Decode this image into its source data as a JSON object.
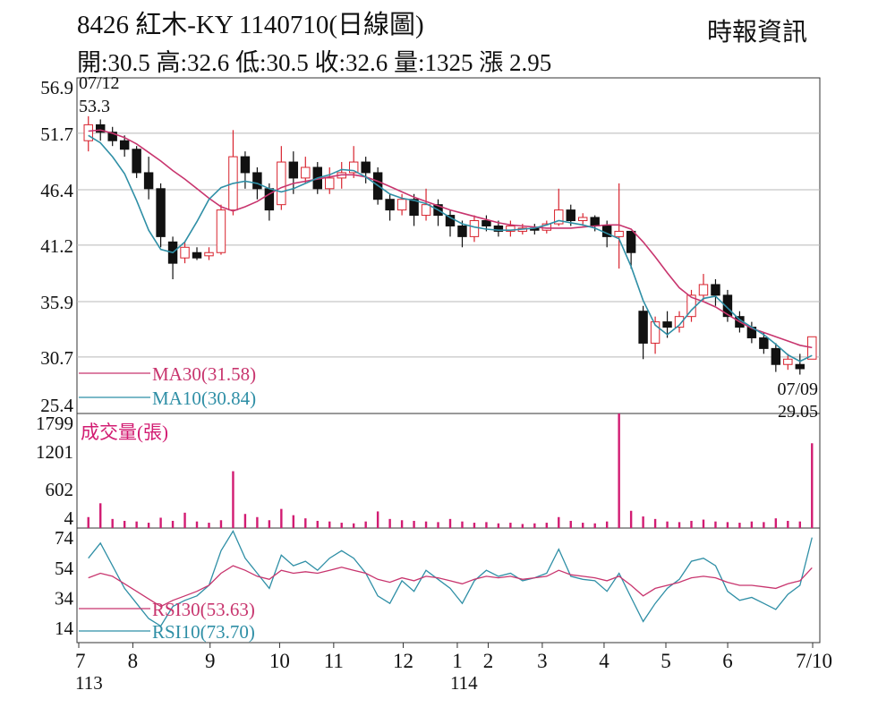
{
  "header": {
    "title": "8426  紅木-KY 1140710(日線圖)",
    "source": "時報資訊",
    "ohlc": "開:30.5 高:32.6 低:30.5 收:32.6 量:1325 漲 2.95"
  },
  "colors": {
    "ma30": "#c8356e",
    "ma10": "#2f8fa6",
    "up": "#d8232e",
    "down": "#111111",
    "volume": "#d21c72",
    "grid": "#b8b8b8"
  },
  "chart_data": [
    {
      "type": "candlestick",
      "ylim": [
        25.4,
        56.9
      ],
      "yticks": [
        "56.9",
        "51.7",
        "46.4",
        "41.2",
        "35.9",
        "30.7",
        "25.4"
      ],
      "x_ticks": [
        {
          "label": "7",
          "sub": "113"
        },
        {
          "label": "8"
        },
        {
          "label": "9"
        },
        {
          "label": "10"
        },
        {
          "label": "11"
        },
        {
          "label": "12"
        },
        {
          "label": "1",
          "sub": "114"
        },
        {
          "label": "2"
        },
        {
          "label": "3"
        },
        {
          "label": "4"
        },
        {
          "label": "5"
        },
        {
          "label": "6"
        },
        {
          "label": "7/10"
        }
      ],
      "high_annotation": {
        "date": "07/12",
        "value": "53.3"
      },
      "low_annotation": {
        "date": "07/09",
        "value": "29.05"
      },
      "series": [
        {
          "name": "MA30",
          "legend": "MA30(31.58)",
          "values": [
            51.9,
            52.0,
            51.7,
            51.3,
            50.7,
            49.9,
            49.1,
            48.2,
            47.4,
            46.5,
            45.6,
            44.8,
            44.4,
            44.8,
            45.3,
            46.0,
            46.6,
            47.0,
            47.2,
            47.4,
            47.6,
            47.8,
            47.8,
            47.6,
            47.2,
            46.7,
            46.2,
            45.7,
            45.3,
            44.9,
            44.5,
            44.2,
            43.9,
            43.6,
            43.3,
            43.1,
            43.0,
            42.9,
            42.8,
            42.8,
            42.8,
            42.9,
            43.0,
            43.1,
            43.1,
            42.7,
            41.5,
            40.1,
            38.6,
            37.2,
            36.3,
            35.9,
            35.4,
            34.7,
            34.0,
            33.4,
            33.0,
            32.6,
            32.2,
            31.8,
            31.58
          ]
        },
        {
          "name": "MA10",
          "legend": "MA10(30.84)",
          "values": [
            51.5,
            50.8,
            49.5,
            47.9,
            45.4,
            42.6,
            40.8,
            40.5,
            41.5,
            43.4,
            45.5,
            46.6,
            47.0,
            47.2,
            47.0,
            46.5,
            46.2,
            46.5,
            47.0,
            47.5,
            47.8,
            48.3,
            48.2,
            47.6,
            46.8,
            46.0,
            45.6,
            45.4,
            45.1,
            44.5,
            43.8,
            43.2,
            42.9,
            42.7,
            42.6,
            42.6,
            42.7,
            42.8,
            43.1,
            43.5,
            43.3,
            43.1,
            42.8,
            42.3,
            41.8,
            39.2,
            36.0,
            33.7,
            32.8,
            33.7,
            35.1,
            36.2,
            36.4,
            35.3,
            34.2,
            33.5,
            32.8,
            31.9,
            30.9,
            30.3,
            30.84
          ]
        }
      ],
      "candles": [
        [
          51.0,
          52.5,
          50.0,
          53.3
        ],
        [
          52.5,
          51.8,
          51.0,
          53.0
        ],
        [
          51.8,
          51.0,
          50.5,
          52.3
        ],
        [
          51.0,
          50.2,
          49.5,
          51.5
        ],
        [
          50.2,
          48.0,
          47.5,
          50.5
        ],
        [
          48.0,
          46.5,
          45.5,
          49.5
        ],
        [
          46.5,
          42.0,
          41.0,
          47.0
        ],
        [
          41.5,
          39.5,
          38.0,
          42.0
        ],
        [
          40.0,
          41.0,
          39.5,
          41.5
        ],
        [
          40.5,
          40.0,
          39.8,
          41.0
        ],
        [
          40.2,
          40.5,
          39.8,
          41.0
        ],
        [
          40.5,
          44.5,
          40.3,
          45.0
        ],
        [
          44.5,
          49.5,
          44.0,
          52.0
        ],
        [
          49.5,
          48.0,
          46.5,
          50.0
        ],
        [
          48.0,
          46.5,
          45.5,
          48.5
        ],
        [
          46.5,
          44.5,
          43.5,
          47.0
        ],
        [
          45.0,
          49.0,
          44.5,
          50.5
        ],
        [
          49.0,
          47.5,
          46.0,
          50.0
        ],
        [
          47.5,
          48.5,
          47.0,
          49.5
        ],
        [
          48.5,
          46.5,
          46.0,
          49.0
        ],
        [
          46.5,
          47.5,
          46.0,
          48.5
        ],
        [
          47.5,
          48.0,
          46.5,
          49.0
        ],
        [
          48.0,
          49.0,
          47.5,
          50.5
        ],
        [
          49.0,
          48.0,
          47.0,
          49.5
        ],
        [
          48.0,
          45.5,
          45.0,
          48.5
        ],
        [
          45.5,
          44.5,
          43.5,
          46.0
        ],
        [
          44.5,
          45.5,
          44.0,
          46.0
        ],
        [
          45.5,
          44.0,
          43.0,
          46.0
        ],
        [
          44.0,
          45.0,
          43.5,
          46.5
        ],
        [
          45.0,
          44.0,
          43.0,
          45.5
        ],
        [
          44.0,
          43.0,
          42.0,
          44.5
        ],
        [
          43.0,
          42.0,
          41.0,
          43.5
        ],
        [
          42.0,
          43.5,
          41.5,
          44.0
        ],
        [
          43.5,
          43.0,
          42.5,
          44.0
        ],
        [
          43.0,
          42.5,
          42.0,
          43.5
        ],
        [
          42.5,
          43.0,
          42.0,
          43.5
        ],
        [
          42.5,
          42.8,
          42.2,
          43.2
        ],
        [
          42.8,
          42.6,
          42.2,
          43.2
        ],
        [
          42.6,
          43.2,
          42.3,
          43.5
        ],
        [
          43.2,
          44.5,
          43.0,
          46.5
        ],
        [
          44.5,
          43.5,
          43.0,
          45.0
        ],
        [
          43.5,
          43.8,
          43.0,
          44.2
        ],
        [
          43.8,
          43.0,
          42.5,
          44.0
        ],
        [
          43.0,
          42.0,
          41.0,
          43.5
        ],
        [
          42.0,
          42.5,
          39.0,
          47.0
        ],
        [
          42.5,
          40.5,
          39.0,
          42.5
        ],
        [
          35.0,
          32.0,
          30.5,
          35.5
        ],
        [
          32.0,
          34.0,
          31.0,
          34.5
        ],
        [
          34.0,
          33.5,
          32.5,
          35.0
        ],
        [
          33.5,
          34.5,
          33.0,
          35.0
        ],
        [
          34.5,
          36.5,
          34.0,
          37.0
        ],
        [
          36.5,
          37.5,
          36.0,
          38.5
        ],
        [
          37.5,
          36.5,
          35.5,
          38.0
        ],
        [
          36.5,
          34.5,
          34.0,
          37.0
        ],
        [
          34.5,
          33.5,
          33.0,
          35.0
        ],
        [
          33.5,
          32.5,
          32.0,
          34.0
        ],
        [
          32.5,
          31.5,
          31.0,
          33.0
        ],
        [
          31.5,
          30.0,
          29.3,
          32.0
        ],
        [
          30.0,
          30.5,
          29.5,
          31.0
        ],
        [
          30.0,
          29.6,
          29.05,
          31.0
        ],
        [
          30.5,
          32.6,
          30.5,
          32.6
        ]
      ]
    },
    {
      "type": "bar",
      "label": "成交量(張)",
      "ylim": [
        4,
        1799
      ],
      "yticks": [
        "1799",
        "1201",
        "602",
        "4"
      ],
      "values": [
        150,
        370,
        120,
        90,
        80,
        60,
        140,
        90,
        220,
        80,
        60,
        100,
        880,
        200,
        150,
        100,
        280,
        180,
        130,
        90,
        80,
        60,
        50,
        80,
        240,
        120,
        100,
        90,
        80,
        70,
        120,
        80,
        60,
        70,
        50,
        60,
        40,
        50,
        60,
        150,
        90,
        60,
        50,
        80,
        1799,
        250,
        160,
        120,
        80,
        70,
        90,
        110,
        80,
        70,
        60,
        80,
        70,
        130,
        90,
        80,
        1325
      ]
    },
    {
      "type": "line",
      "ylim": [
        4,
        80
      ],
      "yticks": [
        "74",
        "54",
        "34",
        "14"
      ],
      "series": [
        {
          "name": "RSI30",
          "legend": "RSI30(53.63)",
          "values": [
            47,
            50,
            48,
            43,
            38,
            33,
            28,
            32,
            35,
            38,
            42,
            50,
            55,
            52,
            48,
            46,
            52,
            50,
            51,
            50,
            52,
            54,
            52,
            50,
            46,
            44,
            47,
            45,
            48,
            47,
            45,
            43,
            46,
            48,
            47,
            48,
            46,
            47,
            48,
            52,
            49,
            48,
            47,
            45,
            48,
            42,
            35,
            40,
            42,
            44,
            47,
            48,
            47,
            44,
            42,
            42,
            41,
            40,
            43,
            45,
            53.63
          ]
        },
        {
          "name": "RSI10",
          "legend": "RSI10(73.70)",
          "values": [
            60,
            70,
            55,
            40,
            30,
            20,
            15,
            28,
            32,
            35,
            42,
            65,
            78,
            60,
            50,
            40,
            62,
            55,
            58,
            52,
            60,
            65,
            60,
            50,
            35,
            30,
            45,
            38,
            52,
            46,
            40,
            30,
            45,
            52,
            48,
            50,
            45,
            47,
            50,
            66,
            48,
            46,
            45,
            38,
            50,
            34,
            18,
            30,
            40,
            46,
            58,
            60,
            55,
            38,
            32,
            34,
            30,
            26,
            36,
            42,
            73.7
          ]
        }
      ]
    }
  ]
}
